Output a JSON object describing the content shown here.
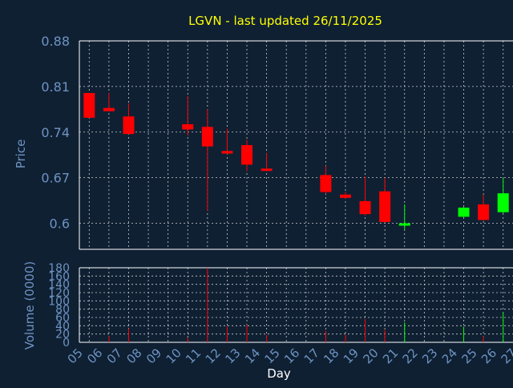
{
  "chart_data": {
    "type": "candlestick",
    "title": "LGVN - last updated 26/11/2025",
    "xlabel": "Day",
    "price_panel": {
      "ylabel": "Price",
      "ylim": [
        0.56,
        0.88
      ],
      "yticks": [
        "0.88",
        "0.81",
        "0.74",
        "0.67",
        "0.6"
      ],
      "ytick_values": [
        0.88,
        0.81,
        0.74,
        0.67,
        0.6
      ],
      "grid": true
    },
    "volume_panel": {
      "ylabel": "Volume (0000)",
      "ylim": [
        0,
        180
      ],
      "yticks": [
        "180",
        "160",
        "140",
        "120",
        "100",
        "80",
        "60",
        "40",
        "20",
        "0"
      ],
      "ytick_values": [
        180,
        160,
        140,
        120,
        100,
        80,
        60,
        40,
        20,
        0
      ],
      "grid": true
    },
    "x_ticks": [
      "05",
      "06",
      "07",
      "08",
      "09",
      "10",
      "11",
      "12",
      "13",
      "14",
      "15",
      "16",
      "17",
      "18",
      "19",
      "20",
      "21",
      "22",
      "23",
      "24",
      "25",
      "26",
      "27"
    ],
    "candles": [
      {
        "day": "05",
        "open": 0.8,
        "high": 0.8,
        "low": 0.762,
        "close": 0.762,
        "volume": 0
      },
      {
        "day": "06",
        "open": 0.777,
        "high": 0.8,
        "low": 0.772,
        "close": 0.772,
        "volume": 15
      },
      {
        "day": "07",
        "open": 0.764,
        "high": 0.784,
        "low": 0.737,
        "close": 0.737,
        "volume": 33
      },
      {
        "day": "10",
        "open": 0.752,
        "high": 0.795,
        "low": 0.735,
        "close": 0.744,
        "volume": 12
      },
      {
        "day": "11",
        "open": 0.748,
        "high": 0.775,
        "low": 0.619,
        "close": 0.718,
        "volume": 180
      },
      {
        "day": "12",
        "open": 0.711,
        "high": 0.745,
        "low": 0.706,
        "close": 0.707,
        "volume": 38
      },
      {
        "day": "13",
        "open": 0.72,
        "high": 0.728,
        "low": 0.68,
        "close": 0.69,
        "volume": 42
      },
      {
        "day": "14",
        "open": 0.684,
        "high": 0.708,
        "low": 0.68,
        "close": 0.682,
        "volume": 18
      },
      {
        "day": "17",
        "open": 0.674,
        "high": 0.688,
        "low": 0.645,
        "close": 0.648,
        "volume": 28
      },
      {
        "day": "18",
        "open": 0.644,
        "high": 0.648,
        "low": 0.638,
        "close": 0.639,
        "volume": 18
      },
      {
        "day": "19",
        "open": 0.634,
        "high": 0.672,
        "low": 0.612,
        "close": 0.614,
        "volume": 56
      },
      {
        "day": "20",
        "open": 0.649,
        "high": 0.67,
        "low": 0.601,
        "close": 0.602,
        "volume": 30
      },
      {
        "day": "21",
        "open": 0.599,
        "high": 0.629,
        "low": 0.59,
        "close": 0.6,
        "volume": 48
      },
      {
        "day": "24",
        "open": 0.61,
        "high": 0.625,
        "low": 0.608,
        "close": 0.624,
        "volume": 38
      },
      {
        "day": "25",
        "open": 0.629,
        "high": 0.644,
        "low": 0.604,
        "close": 0.605,
        "volume": 15
      },
      {
        "day": "26",
        "open": 0.617,
        "high": 0.67,
        "low": 0.615,
        "close": 0.646,
        "volume": 72
      }
    ],
    "colors": {
      "background": "#0f2033",
      "plot_background": "#0f2033",
      "axis": "#ffffff",
      "grid": "#cccccc",
      "tick_text": "#6e93c2",
      "title": "#ffff00",
      "up": "#00ff00",
      "down": "#ff0000"
    }
  }
}
